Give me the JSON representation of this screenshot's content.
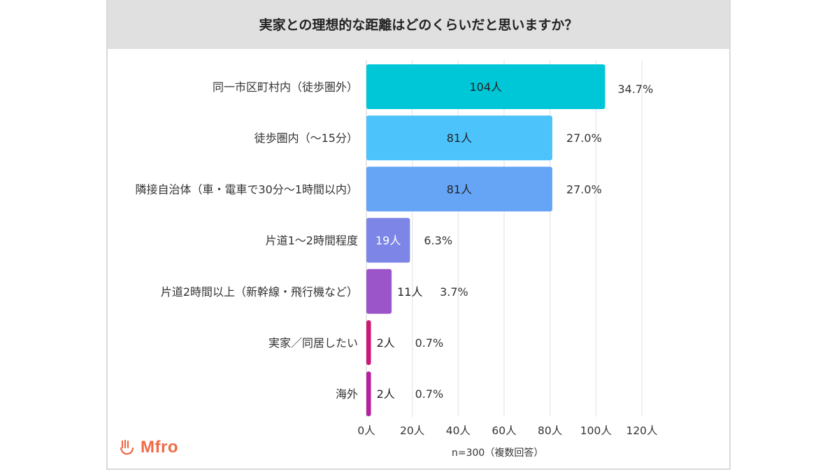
{
  "chart_data": {
    "type": "bar",
    "orientation": "horizontal",
    "title": "実家との理想的な距離はどのくらいだと思いますか？",
    "categories": [
      "同一市区町村内（徒歩圏外）",
      "徒歩圏内（〜15分）",
      "隣接自治体（車・電車で30分〜1時間以内）",
      "片道1〜2時間程度",
      "片道2時間以上（新幹線・飛行機など）",
      "実家／同居したい",
      "海外"
    ],
    "values": [
      104,
      81,
      81,
      19,
      11,
      2,
      2
    ],
    "value_labels": [
      "104人",
      "81人",
      "81人",
      "19人",
      "11人",
      "2人",
      "2人"
    ],
    "percent_labels": [
      "34.7%",
      "27.0%",
      "27.0%",
      "6.3%",
      "3.7%",
      "0.7%",
      "0.7%"
    ],
    "colors": [
      "#00c7d8",
      "#4cc3fb",
      "#66a5f6",
      "#7d86e6",
      "#9b55c8",
      "#cc1775",
      "#b61f9f"
    ],
    "xlim": [
      0,
      120
    ],
    "xticks": [
      0,
      20,
      40,
      60,
      80,
      100,
      120
    ],
    "xtick_labels": [
      "0人",
      "20人",
      "40人",
      "60人",
      "80人",
      "100人",
      "120人"
    ],
    "grid": true,
    "note": "n=300（複数回答）"
  },
  "brand": {
    "name": "Mfro",
    "color": "#ef6a47"
  }
}
